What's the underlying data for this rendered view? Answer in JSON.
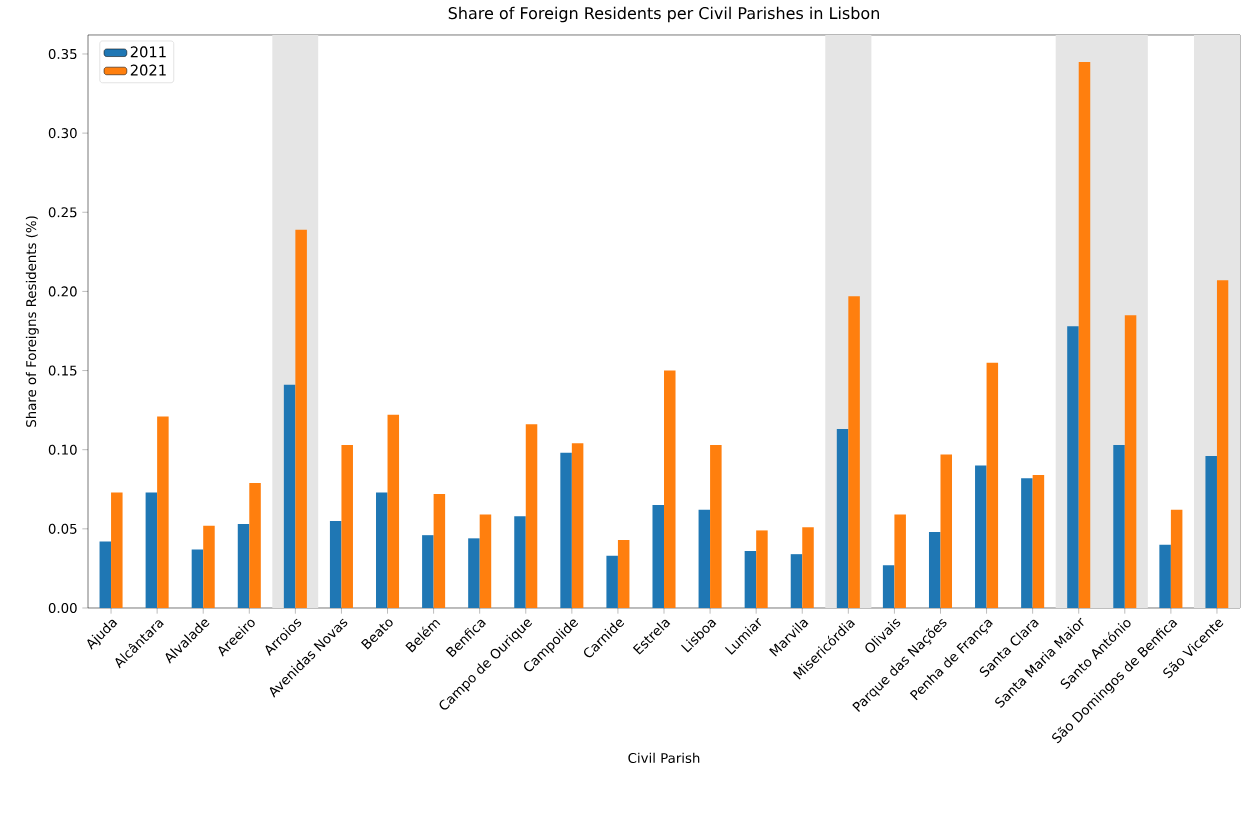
{
  "chart_data": {
    "type": "bar",
    "title": "Share of Foreign Residents per Civil Parishes in Lisbon",
    "xlabel": "Civil Parish",
    "ylabel": "Share of Foreigns Residents (%)",
    "categories": [
      "Ajuda",
      "Alcântara",
      "Alvalade",
      "Areeiro",
      "Arroios",
      "Avenidas Novas",
      "Beato",
      "Belém",
      "Benfica",
      "Campo de Ourique",
      "Campolide",
      "Carnide",
      "Estrela",
      "Lisboa",
      "Lumiar",
      "Marvila",
      "Misericórdia",
      "Olivais",
      "Parque das Nações",
      "Penha de França",
      "Santa Clara",
      "Santa Maria Maior",
      "Santo António",
      "São Domingos de Benfica",
      "São Vicente"
    ],
    "series": [
      {
        "name": "2011",
        "color": "#1f77b4",
        "values": [
          0.042,
          0.073,
          0.037,
          0.053,
          0.141,
          0.055,
          0.073,
          0.046,
          0.044,
          0.058,
          0.098,
          0.033,
          0.065,
          0.062,
          0.036,
          0.034,
          0.113,
          0.027,
          0.048,
          0.09,
          0.082,
          0.178,
          0.103,
          0.04,
          0.096
        ]
      },
      {
        "name": "2021",
        "color": "#ff7f0e",
        "values": [
          0.073,
          0.121,
          0.052,
          0.079,
          0.239,
          0.103,
          0.122,
          0.072,
          0.059,
          0.116,
          0.104,
          0.043,
          0.15,
          0.103,
          0.049,
          0.051,
          0.197,
          0.059,
          0.097,
          0.155,
          0.084,
          0.345,
          0.185,
          0.062,
          0.207
        ]
      }
    ],
    "ylim": [
      0,
      0.362
    ],
    "yticks": [
      {
        "value": 0,
        "label": "0.00"
      },
      {
        "value": 0.05,
        "label": "0.05"
      },
      {
        "value": 0.1,
        "label": "0.10"
      },
      {
        "value": 0.15,
        "label": "0.15"
      },
      {
        "value": 0.2,
        "label": "0.20"
      },
      {
        "value": 0.25,
        "label": "0.25"
      },
      {
        "value": 0.3,
        "label": "0.30"
      },
      {
        "value": 0.35,
        "label": "0.35"
      }
    ],
    "bands": [
      {
        "axis": "x",
        "from": "Arroios",
        "to": "Arroios",
        "color": "#e5e5e5"
      },
      {
        "axis": "x",
        "from": "Misericórdia",
        "to": "Misericórdia",
        "color": "#e5e5e5"
      },
      {
        "axis": "x",
        "from": "Santa Maria Maior",
        "to": "Santo António",
        "color": "#e5e5e5"
      },
      {
        "axis": "x",
        "from": "São Vicente",
        "to": "São Vicente",
        "color": "#e5e5e5"
      }
    ],
    "legend": "top left",
    "grid": false
  }
}
